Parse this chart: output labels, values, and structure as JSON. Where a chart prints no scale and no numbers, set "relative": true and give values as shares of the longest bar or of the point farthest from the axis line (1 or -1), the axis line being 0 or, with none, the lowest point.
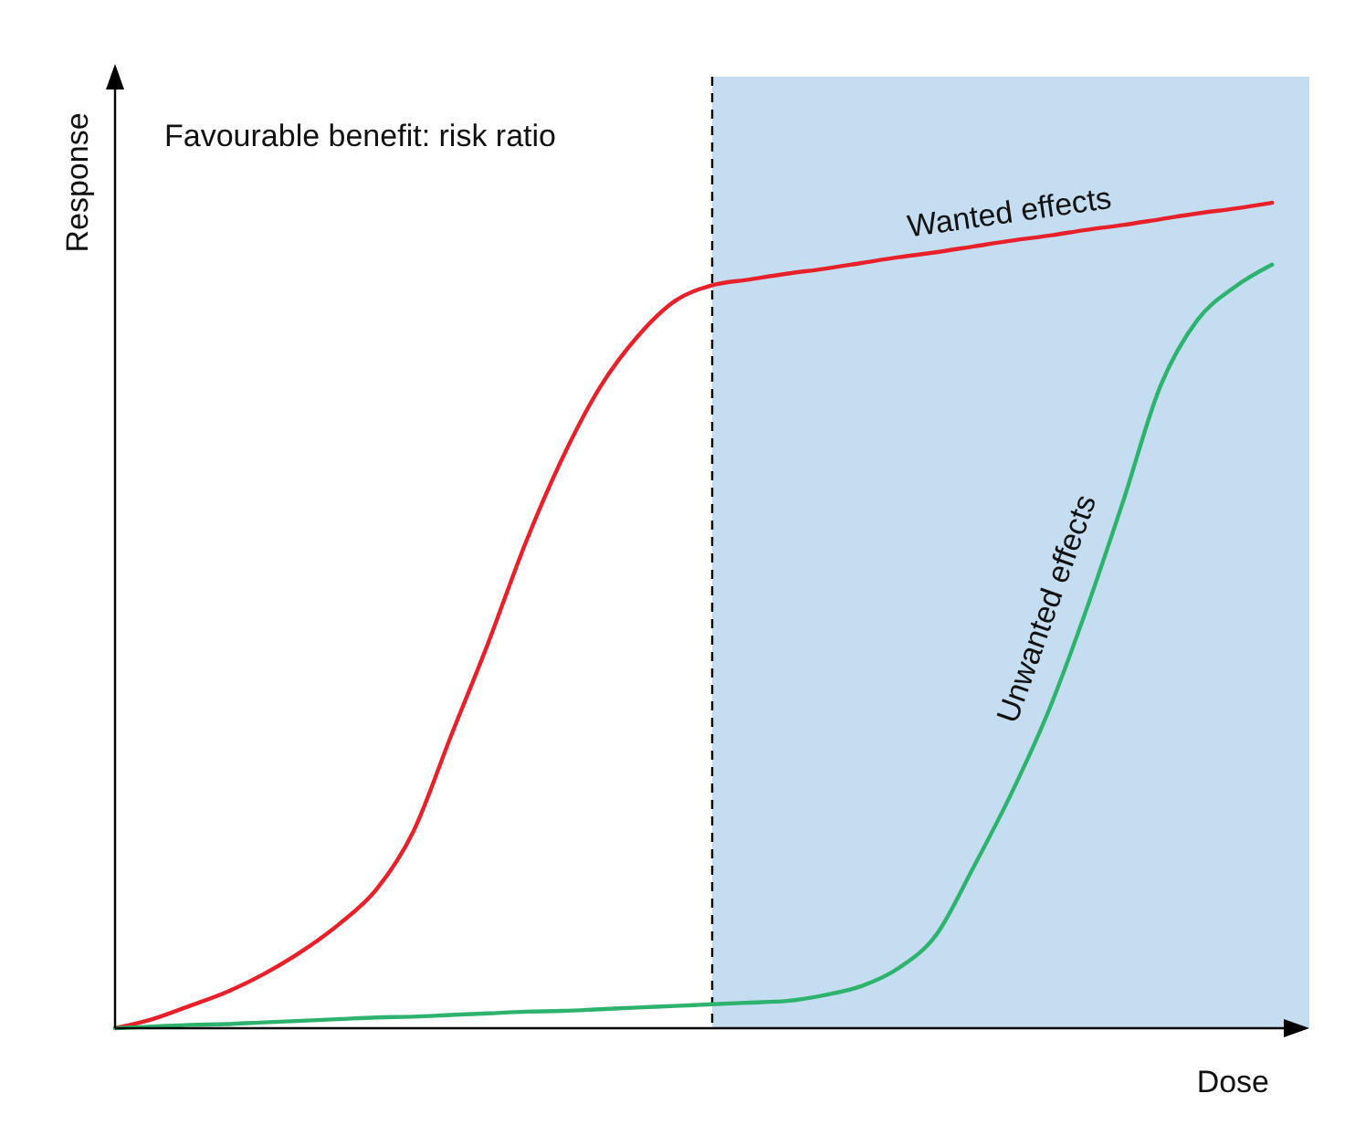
{
  "chart_data": {
    "type": "line",
    "relative": true,
    "title": "Favourable benefit: risk ratio",
    "xlabel": "Dose",
    "ylabel": "Response",
    "categories": [
      null,
      null,
      null,
      null,
      null,
      null,
      null,
      null,
      null,
      null,
      null,
      null,
      null,
      null,
      null,
      null,
      null,
      null,
      null,
      null,
      null,
      null,
      null,
      null,
      null,
      null,
      null,
      null,
      null,
      null,
      null,
      null
    ],
    "series": [
      {
        "name": "Wanted effects",
        "color": "#e8202a",
        "values": [
          0,
          0.011,
          0.027,
          0.044,
          0.066,
          0.093,
          0.126,
          0.168,
          0.239,
          0.354,
          0.467,
          0.588,
          0.692,
          0.777,
          0.838,
          0.881,
          0.9,
          0.907,
          0.914,
          0.92,
          0.927,
          0.934,
          0.94,
          0.947,
          0.954,
          0.96,
          0.967,
          0.973,
          0.98,
          0.987,
          0.993,
          1
        ]
      },
      {
        "name": "Unwanted effects",
        "color": "#2db36e",
        "values": [
          0,
          0.002,
          0.004,
          0.005,
          0.007,
          0.009,
          0.011,
          0.013,
          0.014,
          0.016,
          0.018,
          0.02,
          0.021,
          0.023,
          0.025,
          0.027,
          0.029,
          0.031,
          0.033,
          0.04,
          0.051,
          0.073,
          0.113,
          0.195,
          0.283,
          0.383,
          0.504,
          0.637,
          0.777,
          0.858,
          0.898,
          0.925
        ]
      }
    ],
    "line_style": "solid"
  }
}
